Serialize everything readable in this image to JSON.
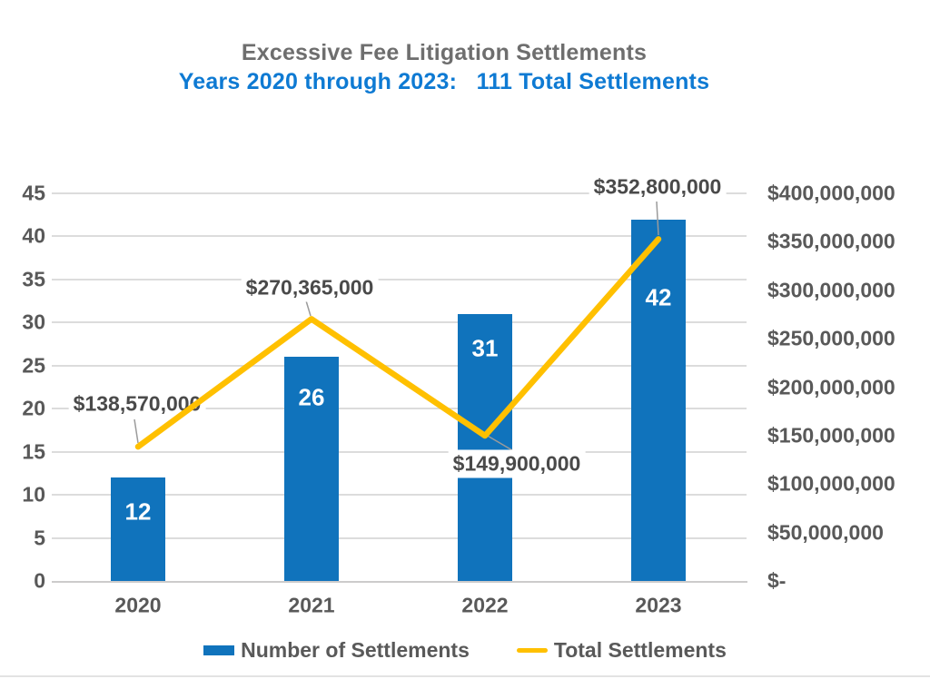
{
  "page": {
    "background": "#FFFFFF"
  },
  "chart_data": {
    "type": "combo_bar_line",
    "title": "Excessive Fee Litigation Settlements",
    "subtitle": "Years 2020 through 2023:   111 Total Settlements",
    "categories": [
      "2020",
      "2021",
      "2022",
      "2023"
    ],
    "series": [
      {
        "name": "Number of Settlements",
        "type": "bar",
        "axis": "left",
        "color": "#1073BC",
        "values": [
          12,
          26,
          31,
          42
        ],
        "value_labels": [
          "12",
          "26",
          "31",
          "42"
        ],
        "value_label_color": "#FFFFFF"
      },
      {
        "name": "Total Settlements",
        "type": "line",
        "axis": "right",
        "color": "#FFC000",
        "values": [
          138570000,
          270365000,
          149900000,
          352800000
        ],
        "point_labels": [
          "$138,570,000",
          "$270,365,000",
          "$149,900,000",
          "$352,800,000"
        ]
      }
    ],
    "left_axis": {
      "min": 0,
      "max": 45,
      "step": 5,
      "tick_labels": [
        "45",
        "40",
        "35",
        "30",
        "25",
        "20",
        "15",
        "10",
        "5",
        "0"
      ]
    },
    "right_axis": {
      "min": 0,
      "max": 400000000,
      "step": 50000000,
      "tick_labels": [
        "$400,000,000",
        "$350,000,000",
        "$300,000,000",
        "$250,000,000",
        "$200,000,000",
        "$150,000,000",
        "$100,000,000",
        "$50,000,000",
        "$-"
      ]
    },
    "legend": {
      "position": "bottom",
      "entries": [
        "Number of Settlements",
        "Total Settlements"
      ]
    },
    "grid": true,
    "styles": {
      "title_color": "#6E6E6E",
      "subtitle_color": "#0E7AD3",
      "axis_label_color": "#595959",
      "x_label_color": "#595959",
      "legend_text_color": "#595959",
      "data_label_color": "#4A4A4A",
      "gridline_color": "#DCDCDC",
      "axis_line_color": "#CCCBCB",
      "leader_line_color": "#9B9B9B",
      "bottom_rule_color": "#E3E3E3"
    }
  }
}
